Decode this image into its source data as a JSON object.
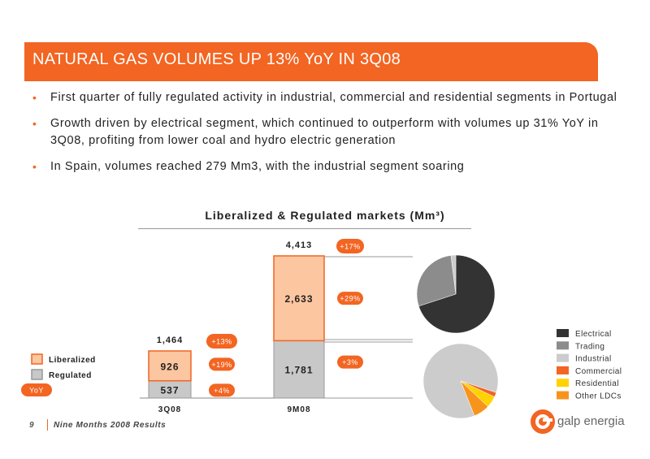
{
  "header": {
    "title": "NATURAL GAS VOLUMES UP 13% YoY IN 3Q08"
  },
  "bullets": [
    "First quarter of fully regulated activity in industrial, commercial and residential segments in Portugal",
    "Growth driven by electrical segment, which continued to outperform with volumes up 31% YoY in 3Q08, profiting from lower coal and hydro electric generation",
    "In Spain, volumes reached 279 Mm3, with the industrial segment soaring"
  ],
  "colors": {
    "brand": "#f26522",
    "liberalized_fill": "#fcc6a0",
    "regulated_fill": "#c8c8c8",
    "electrical": "#333333",
    "trading": "#8c8c8c",
    "industrial": "#cccccc",
    "commercial": "#f26522",
    "residential": "#ffd200",
    "other_ldcs": "#f7941d"
  },
  "chart_data": {
    "type": "bar",
    "title": "Liberalized & Regulated markets (Mm³)",
    "categories": [
      "3Q08",
      "9M08"
    ],
    "series": [
      {
        "name": "Regulated",
        "values": [
          537,
          1781
        ],
        "value_labels": [
          "537",
          "1,781"
        ],
        "yoy": [
          "+4%",
          "+3%"
        ]
      },
      {
        "name": "Liberalized",
        "values": [
          926,
          2633
        ],
        "value_labels": [
          "926",
          "2,633"
        ],
        "yoy": [
          "+19%",
          "+29%"
        ]
      }
    ],
    "totals": [
      1464,
      4413
    ],
    "total_labels": [
      "1,464",
      "4,413"
    ],
    "total_yoy": [
      "+13%",
      "+17%"
    ],
    "bar_legend": [
      "Liberalized",
      "Regulated"
    ],
    "yoy_badge": "YoY",
    "pies": [
      {
        "segments": [
          {
            "name": "Electrical",
            "value": 0.7
          },
          {
            "name": "Trading",
            "value": 0.28
          },
          {
            "name": "Industrial",
            "value": 0.02
          }
        ]
      },
      {
        "segments": [
          {
            "name": "Industrial",
            "value": 0.86
          },
          {
            "name": "Commercial",
            "value": 0.02
          },
          {
            "name": "Residential",
            "value": 0.05
          },
          {
            "name": "Other LDCs",
            "value": 0.07
          }
        ]
      }
    ],
    "pie_legend": [
      "Electrical",
      "Trading",
      "Industrial",
      "Commercial",
      "Residential",
      "Other LDCs"
    ]
  },
  "footer": {
    "page": "9",
    "text": "Nine Months 2008 Results",
    "logo": "galp energia"
  }
}
